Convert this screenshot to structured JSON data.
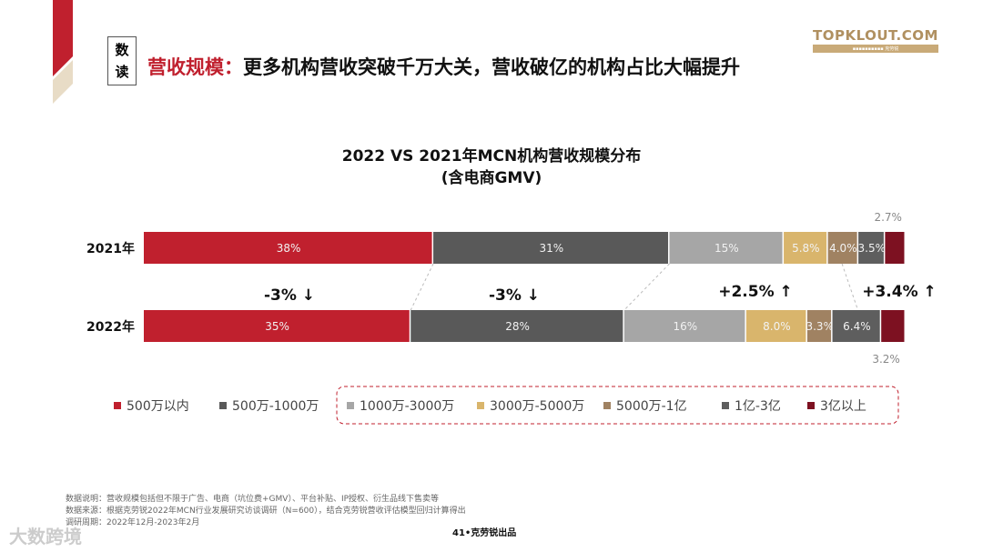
{
  "header": {
    "badge": [
      "数",
      "读"
    ],
    "headline_highlight": "营收规模：",
    "headline_rest": "更多机构营收突破千万大关，营收破亿的机构占比大幅提升",
    "logo": "TOPKLOUT.COM",
    "logo_sub": "克劳锐"
  },
  "chart_data": {
    "type": "bar",
    "orientation": "horizontal",
    "stacked": true,
    "title": "2022 VS 2021年MCN机构营收规模分布",
    "subtitle": "(含电商GMV)",
    "categories": [
      "2021年",
      "2022年"
    ],
    "series": [
      {
        "name": "500万以内",
        "values": [
          38,
          35
        ],
        "color": "#c0202e"
      },
      {
        "name": "500万-1000万",
        "values": [
          31,
          28
        ],
        "color": "#595959"
      },
      {
        "name": "1000万-3000万",
        "values": [
          15,
          16
        ],
        "color": "#a6a6a6"
      },
      {
        "name": "3000万-5000万",
        "values": [
          5.8,
          8.0
        ],
        "color": "#d9b56c"
      },
      {
        "name": "5000万-1亿",
        "values": [
          4.0,
          3.3
        ],
        "color": "#a08262"
      },
      {
        "name": "1亿-3亿",
        "values": [
          3.5,
          6.4
        ],
        "color": "#5e5e5e"
      },
      {
        "name": "3亿以上",
        "values": [
          2.7,
          3.2
        ],
        "color": "#7d1121"
      }
    ],
    "labels": [
      [
        "38%",
        "31%",
        "15%",
        "5.8%",
        "4.0%",
        "3.5%",
        "2.7%"
      ],
      [
        "35%",
        "28%",
        "16%",
        "8.0%",
        "3.3%",
        "6.4%",
        "3.2%"
      ]
    ],
    "changes": [
      {
        "text": "-3%",
        "dir": "down"
      },
      {
        "text": "-3%",
        "dir": "down"
      },
      {
        "text": "+2.5%",
        "dir": "up"
      },
      {
        "text": "+3.4%",
        "dir": "up"
      }
    ],
    "legend": "bottom",
    "unit": "%"
  },
  "notes": [
    "数据说明：营收规模包括但不限于广告、电商（坑位费+GMV）、平台补贴、IP授权、衍生品线下售卖等",
    "数据来源：根据克劳锐2022年MCN行业发展研究访谈调研（N=600），结合克劳锐营收评估模型回归计算得出",
    "调研周期：2022年12月-2023年2月"
  ],
  "footer": {
    "page": "41•克劳锐出品",
    "watermark": "大数跨境"
  }
}
